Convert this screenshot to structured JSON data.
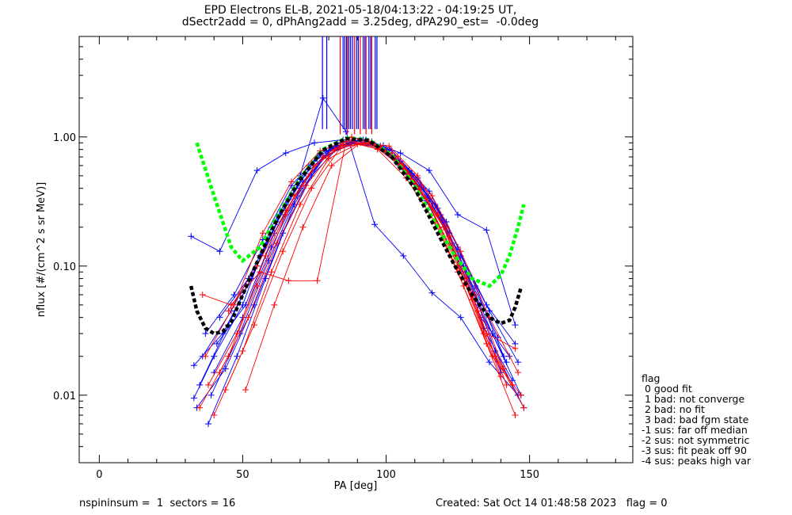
{
  "title_line1": "EPD Electrons EL-B, 2021-05-18/04:13:22 - 04:19:25 UT,",
  "title_line2": "dSectr2add = 0, dPhAng2add = 3.25deg, dPA290_est=  -0.0deg",
  "footer": {
    "left": "nspininsum =  1  sectors = 16",
    "right": "Created: Sat Oct 14 01:48:58 2023   flag = 0"
  },
  "legend": {
    "title": "flag",
    "items": [
      " 0 good fit",
      " 1 bad: not converge",
      " 2 bad: no fit",
      " 3 bad: bad fgm state",
      "-1 sus: far off median",
      "-2 sus: not symmetric",
      "-3 sus: fit peak off 90",
      "-4 sus: peaks high var"
    ]
  },
  "colors": {
    "blue": "#0000ff",
    "red": "#ff0000",
    "green": "#00ff00",
    "black": "#000000"
  },
  "chart_data": {
    "type": "line",
    "xlabel": "PA [deg]",
    "ylabel": "nflux [#/(cm^2 s sr MeV)]",
    "xlim": [
      -7,
      186
    ],
    "ylim": [
      0.003,
      6.0
    ],
    "yscale": "log",
    "xticks": [
      0,
      50,
      100,
      150
    ],
    "xtick_labels": [
      "0",
      "50",
      "100",
      "150"
    ],
    "yticks": [
      0.01,
      0.1,
      1.0
    ],
    "ytick_labels": [
      "0.01",
      "0.10",
      "1.00"
    ],
    "series": [
      {
        "color": "blue",
        "marker": "+",
        "x": [
          32,
          42,
          55,
          65,
          75,
          85,
          95,
          105,
          115,
          125,
          135,
          145
        ],
        "y": [
          0.17,
          0.13,
          0.55,
          0.75,
          0.9,
          0.95,
          0.92,
          0.75,
          0.55,
          0.25,
          0.19,
          0.035
        ]
      },
      {
        "color": "blue",
        "marker": "+",
        "x": [
          33,
          40,
          50,
          60,
          70,
          78,
          86,
          96,
          106,
          116,
          126,
          136,
          146
        ],
        "y": [
          0.0095,
          0.02,
          0.05,
          0.2,
          0.5,
          2.0,
          1.1,
          0.21,
          0.12,
          0.062,
          0.04,
          0.018,
          0.01
        ]
      },
      {
        "color": "blue",
        "marker": "+",
        "x": [
          34,
          44,
          54,
          64,
          74,
          84,
          94,
          104,
          114,
          124,
          134,
          144
        ],
        "y": [
          0.008,
          0.016,
          0.05,
          0.18,
          0.5,
          0.86,
          0.92,
          0.62,
          0.32,
          0.12,
          0.033,
          0.013
        ]
      },
      {
        "color": "blue",
        "marker": "+",
        "x": [
          33,
          43,
          53,
          63,
          73,
          83,
          93,
          103,
          113,
          123,
          133,
          143
        ],
        "y": [
          0.017,
          0.03,
          0.08,
          0.25,
          0.6,
          0.9,
          0.95,
          0.7,
          0.4,
          0.15,
          0.04,
          0.02
        ]
      },
      {
        "color": "blue",
        "marker": "+",
        "x": [
          35,
          45,
          55,
          65,
          75,
          85,
          95,
          105,
          115,
          125,
          135,
          145
        ],
        "y": [
          0.012,
          0.035,
          0.1,
          0.3,
          0.65,
          0.88,
          0.9,
          0.65,
          0.38,
          0.14,
          0.05,
          0.025
        ]
      },
      {
        "color": "blue",
        "marker": "+",
        "x": [
          38,
          48,
          58,
          68,
          78,
          88,
          98,
          108,
          118,
          128,
          138,
          148
        ],
        "y": [
          0.006,
          0.02,
          0.08,
          0.3,
          0.7,
          0.9,
          0.85,
          0.55,
          0.28,
          0.09,
          0.022,
          0.008
        ]
      },
      {
        "color": "blue",
        "marker": "+",
        "x": [
          36,
          46,
          56,
          66,
          76,
          86,
          96,
          106,
          116,
          126,
          136,
          146
        ],
        "y": [
          0.02,
          0.045,
          0.12,
          0.33,
          0.7,
          0.92,
          0.88,
          0.6,
          0.3,
          0.12,
          0.045,
          0.018
        ]
      },
      {
        "color": "blue",
        "marker": "+",
        "x": [
          40,
          50,
          60,
          70,
          80,
          90,
          100,
          110,
          120,
          130,
          140
        ],
        "y": [
          0.015,
          0.04,
          0.14,
          0.4,
          0.78,
          0.93,
          0.8,
          0.45,
          0.2,
          0.06,
          0.015
        ]
      },
      {
        "color": "blue",
        "marker": "+",
        "x": [
          37,
          47,
          57,
          67,
          77,
          87,
          97,
          107,
          117,
          127,
          137,
          147
        ],
        "y": [
          0.03,
          0.06,
          0.16,
          0.42,
          0.75,
          0.9,
          0.84,
          0.55,
          0.3,
          0.1,
          0.03,
          0.01
        ]
      },
      {
        "color": "blue",
        "marker": "+",
        "x": [
          41,
          51,
          61,
          71,
          81,
          91,
          101,
          111,
          121,
          131,
          141
        ],
        "y": [
          0.025,
          0.05,
          0.18,
          0.45,
          0.82,
          0.95,
          0.82,
          0.48,
          0.22,
          0.07,
          0.02
        ]
      },
      {
        "color": "blue",
        "marker": "+",
        "x": [
          39,
          49,
          59,
          69,
          79,
          89,
          99,
          109,
          119,
          129,
          139
        ],
        "y": [
          0.01,
          0.03,
          0.11,
          0.35,
          0.72,
          0.9,
          0.86,
          0.52,
          0.25,
          0.08,
          0.028
        ]
      },
      {
        "color": "blue",
        "marker": "+",
        "x": [
          42,
          52,
          62,
          72,
          82,
          92,
          102,
          112,
          122,
          132,
          142
        ],
        "y": [
          0.04,
          0.08,
          0.22,
          0.52,
          0.85,
          0.95,
          0.78,
          0.42,
          0.18,
          0.05,
          0.018
        ]
      },
      {
        "color": "red",
        "marker": "+",
        "x": [
          35,
          45,
          55,
          65,
          75,
          85,
          95,
          105,
          115,
          125,
          135,
          145
        ],
        "y": [
          0.008,
          0.02,
          0.07,
          0.25,
          0.6,
          0.88,
          0.9,
          0.62,
          0.3,
          0.09,
          0.025,
          0.007
        ]
      },
      {
        "color": "red",
        "marker": "+",
        "x": [
          36,
          46,
          56,
          66,
          76,
          86,
          96,
          106,
          116,
          126,
          136,
          146
        ],
        "y": [
          0.06,
          0.05,
          0.09,
          0.077,
          0.077,
          0.92,
          0.88,
          0.6,
          0.35,
          0.13,
          0.04,
          0.015
        ]
      },
      {
        "color": "red",
        "marker": "+",
        "x": [
          38,
          48,
          58,
          68,
          78,
          88,
          98,
          108,
          118,
          128,
          138,
          148
        ],
        "y": [
          0.012,
          0.03,
          0.12,
          0.35,
          0.7,
          1.0,
          0.85,
          0.5,
          0.25,
          0.08,
          0.02,
          0.008
        ]
      },
      {
        "color": "red",
        "marker": "+",
        "x": [
          40,
          50,
          60,
          70,
          80,
          90,
          100,
          110,
          120,
          130,
          140
        ],
        "y": [
          0.007,
          0.022,
          0.09,
          0.3,
          0.68,
          0.88,
          0.78,
          0.45,
          0.2,
          0.055,
          0.014
        ]
      },
      {
        "color": "red",
        "marker": "+",
        "x": [
          42,
          52,
          62,
          72,
          82,
          92,
          102,
          112,
          122,
          132,
          142
        ],
        "y": [
          0.015,
          0.04,
          0.15,
          0.42,
          0.8,
          0.9,
          0.75,
          0.4,
          0.17,
          0.045,
          0.012
        ]
      },
      {
        "color": "red",
        "marker": "+",
        "x": [
          37,
          47,
          57,
          67,
          77,
          87,
          97,
          107,
          117,
          127,
          137,
          147
        ],
        "y": [
          0.02,
          0.05,
          0.18,
          0.45,
          0.78,
          0.95,
          0.8,
          0.48,
          0.22,
          0.07,
          0.02,
          0.01
        ]
      },
      {
        "color": "red",
        "marker": "+",
        "x": [
          44,
          54,
          64,
          74,
          84,
          94,
          104,
          114,
          124,
          134,
          144
        ],
        "y": [
          0.011,
          0.035,
          0.13,
          0.4,
          0.82,
          0.92,
          0.7,
          0.33,
          0.12,
          0.03,
          0.012
        ]
      },
      {
        "color": "red",
        "marker": "+",
        "x": [
          45,
          55,
          65,
          75,
          85,
          95,
          105,
          115,
          125,
          135,
          145
        ],
        "y": [
          0.045,
          0.1,
          0.27,
          0.6,
          0.86,
          0.88,
          0.6,
          0.3,
          0.1,
          0.03,
          0.023
        ]
      },
      {
        "color": "red",
        "marker": "+",
        "x": [
          51,
          61,
          71,
          81,
          91,
          101,
          111,
          121,
          131,
          141
        ],
        "y": [
          0.011,
          0.05,
          0.2,
          0.6,
          0.9,
          0.85,
          0.5,
          0.2,
          0.06,
          0.016
        ]
      }
    ],
    "spikes": [
      {
        "color": "blue",
        "x": [
          77.8,
          79.3
        ],
        "y_low": 1.15
      },
      {
        "color": "red",
        "x": [
          84,
          86.5,
          89,
          91,
          93,
          95
        ],
        "y_low": 1.05
      },
      {
        "color": "blue",
        "x": [
          85,
          85.6,
          86.2,
          87,
          87.6,
          88.3,
          89.7,
          90.3,
          92,
          92.6,
          94,
          94.6,
          96.2,
          96.8
        ],
        "y_low": 1.15
      }
    ],
    "fit_curves": [
      {
        "color": "green",
        "style": "dashed",
        "x": [
          34,
          40,
          46,
          50,
          56,
          62,
          70,
          78,
          86,
          94,
          102,
          110,
          118,
          124,
          130,
          136,
          140,
          143,
          146,
          148
        ],
        "y": [
          0.9,
          0.35,
          0.14,
          0.11,
          0.14,
          0.24,
          0.48,
          0.8,
          0.98,
          0.95,
          0.72,
          0.42,
          0.2,
          0.12,
          0.08,
          0.07,
          0.085,
          0.12,
          0.2,
          0.3
        ]
      },
      {
        "color": "black",
        "style": "dashed",
        "x": [
          32,
          34,
          37,
          40,
          43,
          46,
          50,
          56,
          62,
          70,
          78,
          86,
          94,
          102,
          110,
          118,
          124,
          130,
          136,
          140,
          143,
          145,
          147
        ],
        "y": [
          0.07,
          0.045,
          0.033,
          0.03,
          0.031,
          0.037,
          0.06,
          0.12,
          0.23,
          0.47,
          0.79,
          0.97,
          0.94,
          0.7,
          0.4,
          0.18,
          0.1,
          0.06,
          0.04,
          0.036,
          0.038,
          0.048,
          0.068
        ]
      }
    ]
  }
}
